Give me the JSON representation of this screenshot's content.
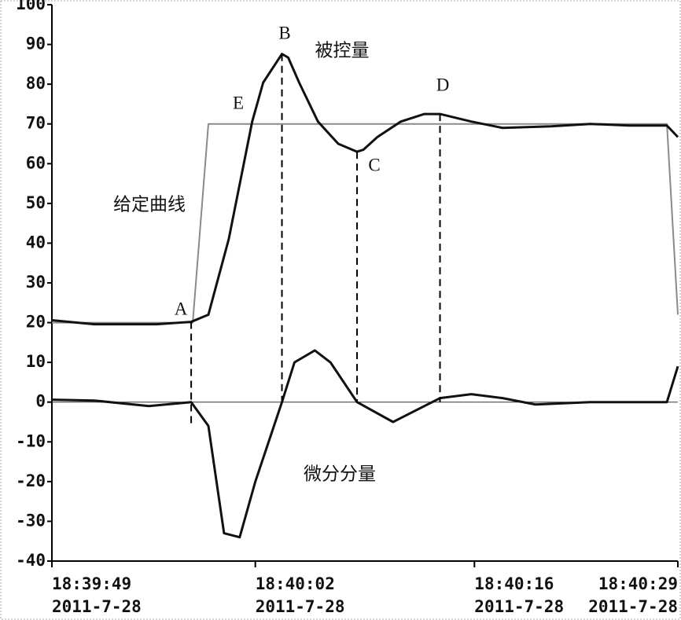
{
  "chart_data": {
    "type": "line",
    "xlim": [
      0,
      40
    ],
    "xticks": [
      {
        "value": 0,
        "label": "18:39:49\n2011-7-28"
      },
      {
        "value": 13,
        "label": "18:40:02\n2011-7-28"
      },
      {
        "value": 27,
        "label": "18:40:16\n2011-7-28"
      },
      {
        "value": 40,
        "label": "18:40:29\n2011-7-28"
      }
    ],
    "ylim": [
      -40,
      100
    ],
    "yticks": [
      -40,
      -30,
      -20,
      -10,
      0,
      10,
      20,
      30,
      40,
      50,
      60,
      70,
      80,
      90,
      100
    ],
    "series": [
      {
        "color": "#8a8a8a",
        "x": [
          0,
          9,
          10,
          39.3,
          40
        ],
        "values": [
          20,
          20,
          70,
          70,
          22
        ]
      },
      {
        "color": "#111111",
        "x": [
          0,
          2.7,
          6.7,
          8.9,
          10,
          11.3,
          12.8,
          13.5,
          14.7,
          15.1,
          15.8,
          17,
          18.3,
          19.5,
          19.9,
          20.8,
          22.3,
          23.8,
          24.8,
          26.8,
          28.8,
          31.9,
          34.4,
          36.9,
          39.3,
          40
        ],
        "values": [
          20.6,
          19.6,
          19.6,
          20.2,
          22,
          41,
          70.6,
          80.4,
          87.6,
          86.7,
          80.4,
          70.6,
          65,
          63,
          63.5,
          66.7,
          70.6,
          72.5,
          72.5,
          70.6,
          69,
          69.4,
          70,
          69.6,
          69.6,
          66.7
        ]
      },
      {
        "color": "#111111",
        "x": [
          0,
          2.7,
          6.2,
          8.9,
          10,
          11,
          12,
          13,
          14.7,
          15.5,
          16.8,
          17.8,
          19.5,
          21.8,
          24.8,
          26.8,
          28.8,
          30.9,
          34.4,
          39.3,
          40
        ],
        "values": [
          0.6,
          0.4,
          -1,
          0,
          -6,
          -33,
          -34,
          -20,
          0,
          10,
          13,
          10,
          0,
          -5,
          1,
          2,
          1,
          -0.6,
          0,
          0,
          9
        ]
      }
    ],
    "annotations": [
      "A",
      "B",
      "C",
      "D",
      "E",
      "被控量",
      "给定曲线",
      "微分分量"
    ]
  }
}
